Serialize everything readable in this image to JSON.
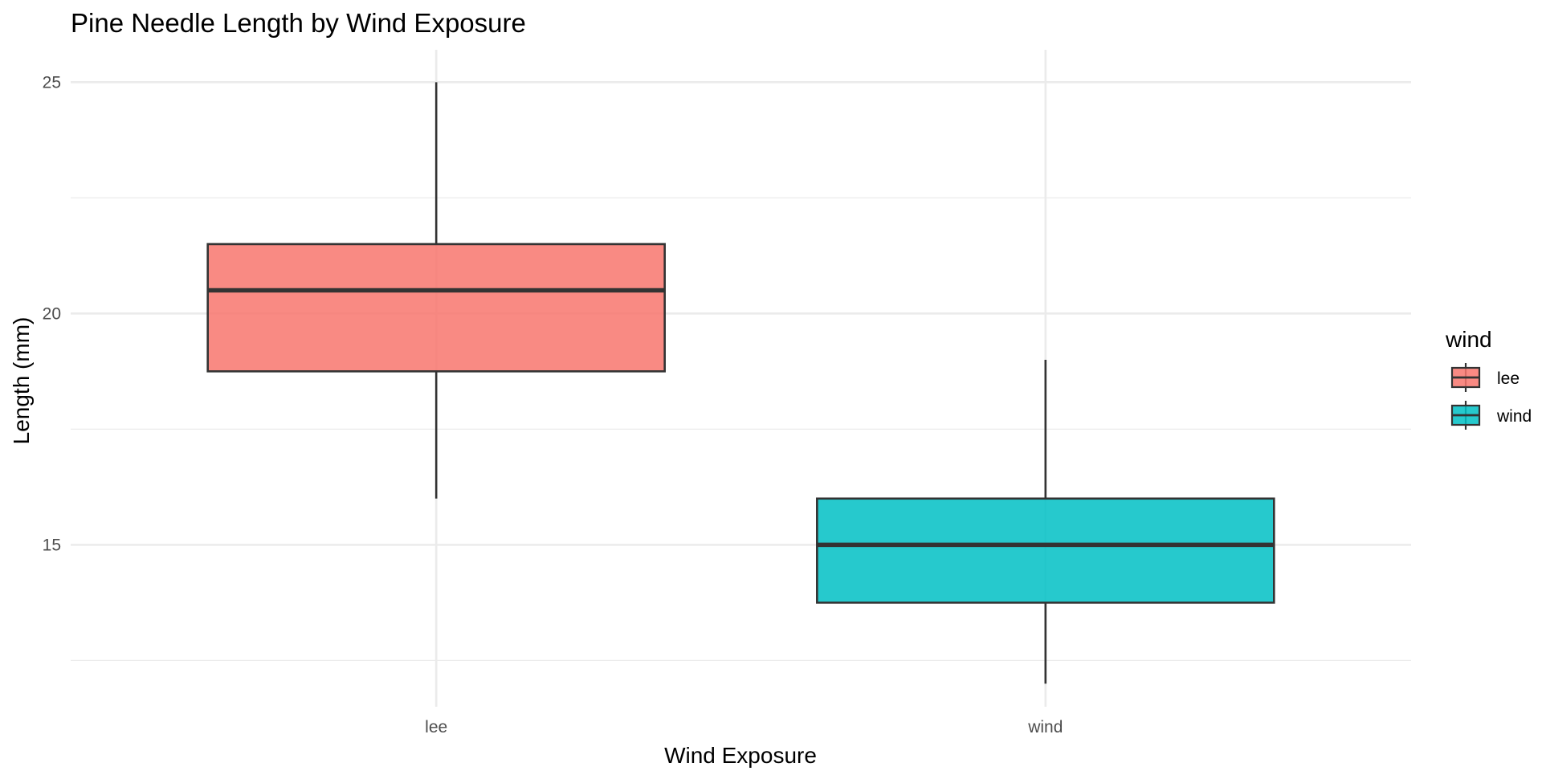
{
  "chart_data": {
    "type": "boxplot",
    "title": "Pine Needle Length by Wind Exposure",
    "xlabel": "Wind Exposure",
    "ylabel": "Length (mm)",
    "categories": [
      "lee",
      "wind"
    ],
    "ylim": [
      11.5,
      25.7
    ],
    "y_ticks": [
      15,
      20,
      25
    ],
    "y_minor_ticks": [
      12.5,
      17.5,
      22.5
    ],
    "grid": true,
    "legend": {
      "title": "wind",
      "placement": "right",
      "entries": [
        "lee",
        "wind"
      ]
    },
    "boxes": [
      {
        "category": "lee",
        "min": 16,
        "q1": 18.75,
        "median": 20.5,
        "q3": 21.5,
        "max": 25,
        "color": "#F8766D"
      },
      {
        "category": "wind",
        "min": 12,
        "q1": 13.75,
        "median": 15,
        "q3": 16,
        "max": 19,
        "color": "#00BFC4"
      }
    ],
    "outline_color": "#333333"
  }
}
